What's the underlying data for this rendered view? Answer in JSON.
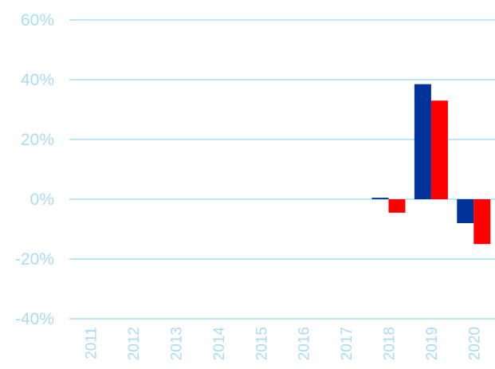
{
  "chart_data": {
    "type": "bar",
    "categories": [
      "2011",
      "2012",
      "2013",
      "2014",
      "2015",
      "2016",
      "2017",
      "2018",
      "2019",
      "2020"
    ],
    "series": [
      {
        "color": "#003399",
        "values": [
          null,
          null,
          null,
          null,
          null,
          null,
          null,
          0.5,
          38.5,
          -8
        ]
      },
      {
        "color": "#ff0000",
        "values": [
          null,
          null,
          null,
          null,
          null,
          null,
          null,
          -4.5,
          33,
          -15
        ]
      }
    ],
    "y_ticks": [
      "60%",
      "40%",
      "20%",
      "0%",
      "-20%",
      "-40%"
    ],
    "ylim": [
      -40,
      60
    ],
    "grid": true,
    "legend": "none"
  }
}
